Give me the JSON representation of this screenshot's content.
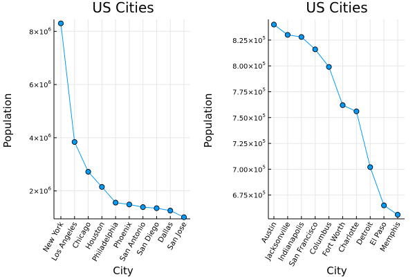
{
  "chart_data": [
    {
      "type": "line",
      "title": "US Cities",
      "xlabel": "City",
      "ylabel": "Population",
      "color": "#009af9",
      "categories": [
        "New York",
        "Los Angeles",
        "Chicago",
        "Houston",
        "Philadelphia",
        "Phoenix",
        "San Antonio",
        "San Diego",
        "Dallas",
        "San Jose"
      ],
      "values": [
        8300000,
        3840000,
        2720000,
        2150000,
        1560000,
        1490000,
        1390000,
        1350000,
        1260000,
        1010000
      ],
      "ylim": [
        950000,
        8450000
      ],
      "yticks": [
        {
          "value": 2000000,
          "mantissa": "2×10",
          "exp": "6"
        },
        {
          "value": 4000000,
          "mantissa": "4×10",
          "exp": "6"
        },
        {
          "value": 6000000,
          "mantissa": "6×10",
          "exp": "6"
        },
        {
          "value": 8000000,
          "mantissa": "8×10",
          "exp": "6"
        }
      ],
      "grid": true,
      "legend": "none"
    },
    {
      "type": "line",
      "title": "US Cities",
      "xlabel": "City",
      "ylabel": "Population",
      "color": "#009af9",
      "categories": [
        "Austin",
        "Jacksonville",
        "Indianapolis",
        "San Francisco",
        "Columbus",
        "Fort Worth",
        "Charlotte",
        "Detroit",
        "El Paso",
        "Memphis"
      ],
      "values": [
        840000,
        830000,
        828000,
        816000,
        799000,
        762000,
        756000,
        702000,
        665000,
        656000
      ],
      "ylim": [
        652000,
        845000
      ],
      "yticks": [
        {
          "value": 675000,
          "mantissa": "6.75×10",
          "exp": "5"
        },
        {
          "value": 700000,
          "mantissa": "7.00×10",
          "exp": "5"
        },
        {
          "value": 725000,
          "mantissa": "7.25×10",
          "exp": "5"
        },
        {
          "value": 750000,
          "mantissa": "7.50×10",
          "exp": "5"
        },
        {
          "value": 775000,
          "mantissa": "7.75×10",
          "exp": "5"
        },
        {
          "value": 800000,
          "mantissa": "8.00×10",
          "exp": "5"
        },
        {
          "value": 825000,
          "mantissa": "8.25×10",
          "exp": "5"
        }
      ],
      "grid": true,
      "legend": "none"
    }
  ]
}
